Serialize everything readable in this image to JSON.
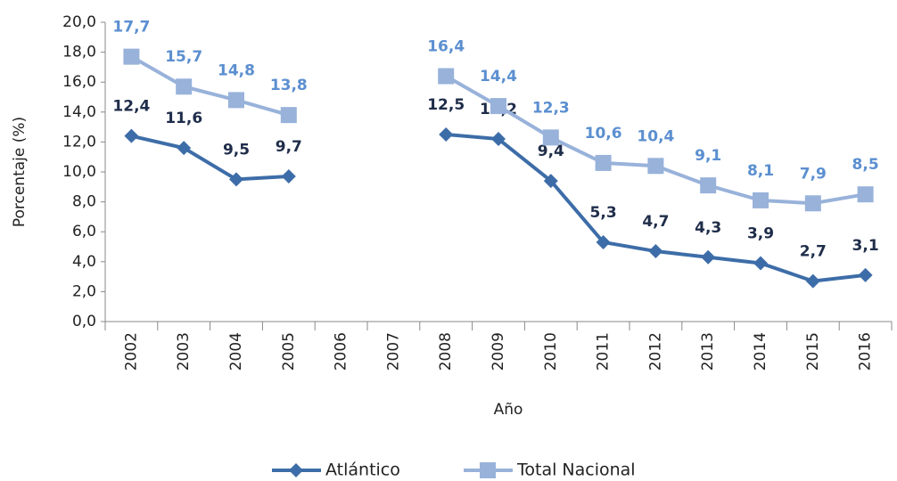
{
  "chart_data": {
    "type": "line",
    "x_label": "Año",
    "y_label": "Porcentaje (%)",
    "categories": [
      "2002",
      "2003",
      "2004",
      "2005",
      "2006",
      "2007",
      "2008",
      "2009",
      "2010",
      "2011",
      "2012",
      "2013",
      "2014",
      "2015",
      "2016"
    ],
    "series": [
      {
        "name": "Atlántico",
        "color": "#3d6da8",
        "label_color": "#1f2d4a",
        "marker": "diamond",
        "values": [
          12.4,
          11.6,
          9.5,
          9.7,
          null,
          null,
          12.5,
          12.2,
          9.4,
          5.3,
          4.7,
          4.3,
          3.9,
          2.7,
          3.1
        ],
        "value_labels": [
          "12,4",
          "11,6",
          "9,5",
          "9,7",
          null,
          null,
          "12,5",
          "12,2",
          "9,4",
          "5,3",
          "4,7",
          "4,3",
          "3,9",
          "2,7",
          "3,1"
        ]
      },
      {
        "name": "Total Nacional",
        "color": "#98b2da",
        "label_color": "#5b8fd0",
        "marker": "square",
        "values": [
          17.7,
          15.7,
          14.8,
          13.8,
          null,
          null,
          16.4,
          14.4,
          12.3,
          10.6,
          10.4,
          9.1,
          8.1,
          7.9,
          8.5
        ],
        "value_labels": [
          "17,7",
          "15,7",
          "14,8",
          "13,8",
          null,
          null,
          "16,4",
          "14,4",
          "12,3",
          "10,6",
          "10,4",
          "9,1",
          "8,1",
          "7,9",
          "8,5"
        ]
      }
    ],
    "ylim": [
      0,
      20
    ],
    "yticks": [
      {
        "value": 0,
        "label": "0,0"
      },
      {
        "value": 2,
        "label": "2,0"
      },
      {
        "value": 4,
        "label": "4,0"
      },
      {
        "value": 6,
        "label": "6,0"
      },
      {
        "value": 8,
        "label": "8,0"
      },
      {
        "value": 10,
        "label": "10,0"
      },
      {
        "value": 12,
        "label": "12,0"
      },
      {
        "value": 14,
        "label": "14,0"
      },
      {
        "value": 16,
        "label": "16,0"
      },
      {
        "value": 18,
        "label": "18,0"
      },
      {
        "value": 20,
        "label": "20,0"
      }
    ],
    "grid": false,
    "legend": "bottom"
  }
}
